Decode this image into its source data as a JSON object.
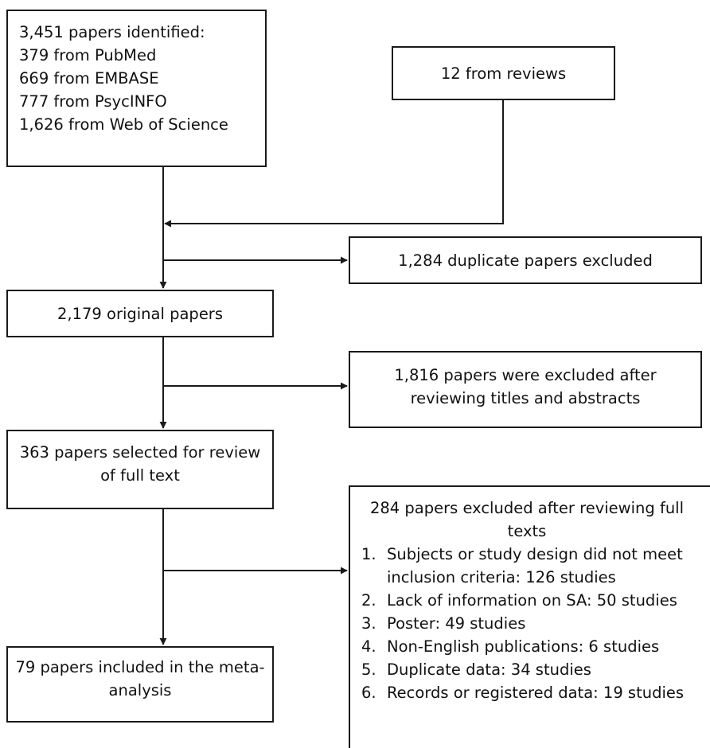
{
  "boxes": {
    "identified": {
      "lines": [
        "3,451 papers identified:",
        "379 from PubMed",
        "669 from EMBASE",
        "777 from PsycINFO",
        "1,626 from Web of Science"
      ]
    },
    "reviews": {
      "text": "12 from reviews"
    },
    "duplicates_excluded": {
      "text": "1,284 duplicate papers excluded"
    },
    "original": {
      "text": "2,179 original papers"
    },
    "titles_excluded": {
      "lines": [
        "1,816 papers were excluded after",
        "reviewing titles and abstracts"
      ]
    },
    "selected": {
      "lines": [
        "363 papers selected for review",
        "of full text"
      ]
    },
    "full_text_excluded": {
      "heading_lines": [
        "284 papers excluded after reviewing full",
        "texts"
      ],
      "items": [
        {
          "num": "1.",
          "text": "Subjects or study design did not meet\ninclusion criteria: 126 studies"
        },
        {
          "num": "2.",
          "text": "Lack of information on SA: 50 studies"
        },
        {
          "num": "3.",
          "text": "Poster: 49 studies"
        },
        {
          "num": "4.",
          "text": "Non-English publications: 6 studies"
        },
        {
          "num": "5.",
          "text": "Duplicate data: 34 studies"
        },
        {
          "num": "6.",
          "text": "Records or registered data: 19 studies"
        }
      ]
    },
    "included": {
      "lines": [
        "79 papers included in the meta-",
        "analysis"
      ]
    }
  },
  "colors": {
    "line": "#1a1a1a",
    "background": "#ffffff",
    "text": "#111111"
  }
}
